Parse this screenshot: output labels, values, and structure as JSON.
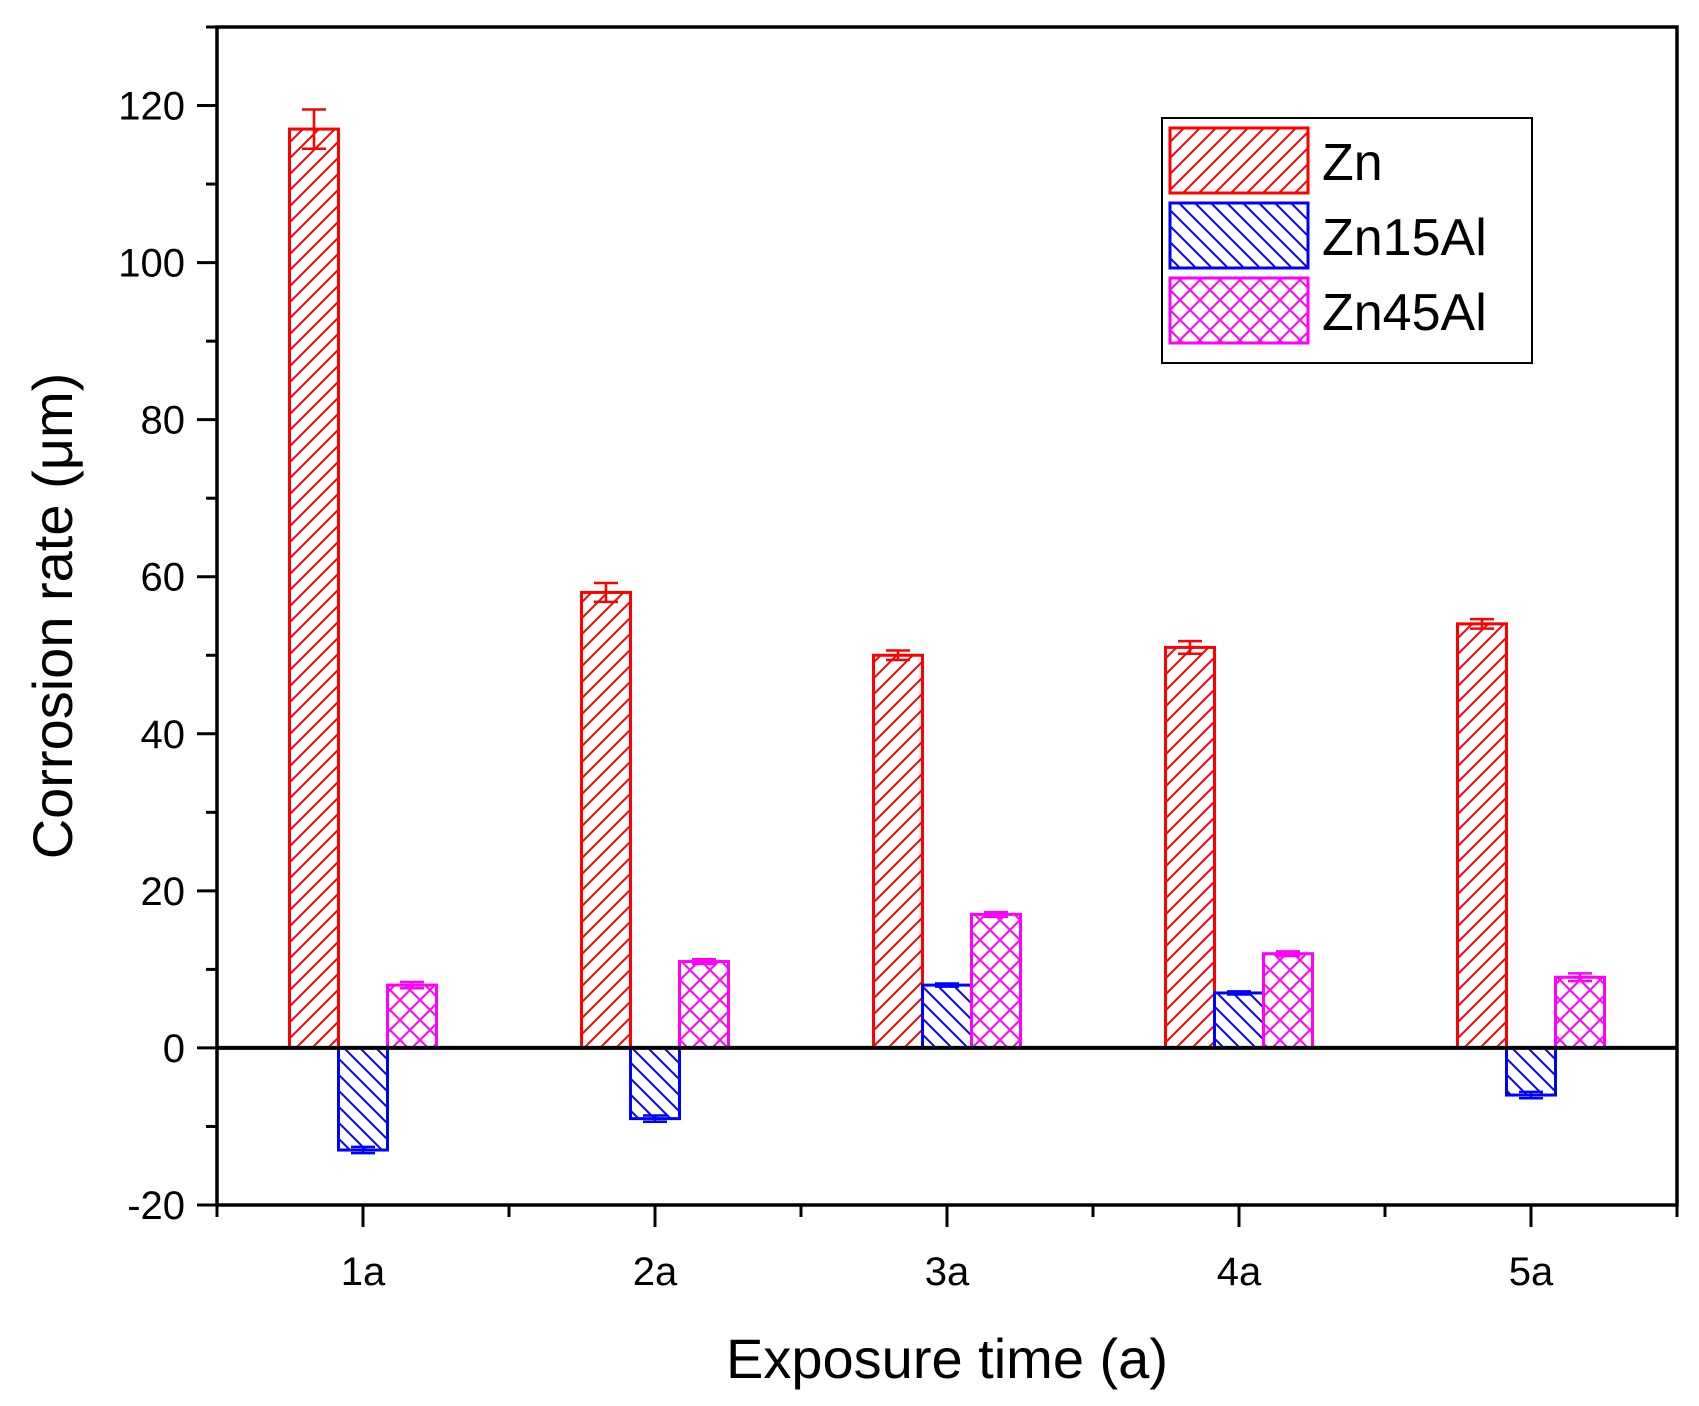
{
  "chart_data": {
    "type": "bar",
    "title": "",
    "xlabel": "Exposure time (a)",
    "ylabel": "Corrosion rate (μm)",
    "categories": [
      "1a",
      "2a",
      "3a",
      "4a",
      "5a"
    ],
    "ylim": [
      -20,
      130
    ],
    "yticks": [
      -20,
      0,
      20,
      40,
      60,
      80,
      100,
      120
    ],
    "ytick_labels": [
      "-20",
      "0",
      "20",
      "40",
      "60",
      "80",
      "100",
      "120"
    ],
    "legend_position": "top-right",
    "series": [
      {
        "name": "Zn",
        "color": "#ff0000",
        "pattern": "diagonal-up",
        "values": [
          117,
          58,
          50,
          51,
          54
        ],
        "errors": [
          2.5,
          1.2,
          0.6,
          0.8,
          0.6
        ]
      },
      {
        "name": "Zn15Al",
        "color": "#0000ff",
        "pattern": "diagonal-down",
        "values": [
          -13,
          -9,
          8,
          7,
          -6
        ],
        "errors": [
          0.4,
          0.4,
          0.2,
          0.2,
          0.4
        ]
      },
      {
        "name": "Zn45Al",
        "color": "#ff00ff",
        "pattern": "crosshatch",
        "values": [
          8,
          11,
          17,
          12,
          9
        ],
        "errors": [
          0.4,
          0.3,
          0.3,
          0.3,
          0.5
        ]
      }
    ]
  }
}
